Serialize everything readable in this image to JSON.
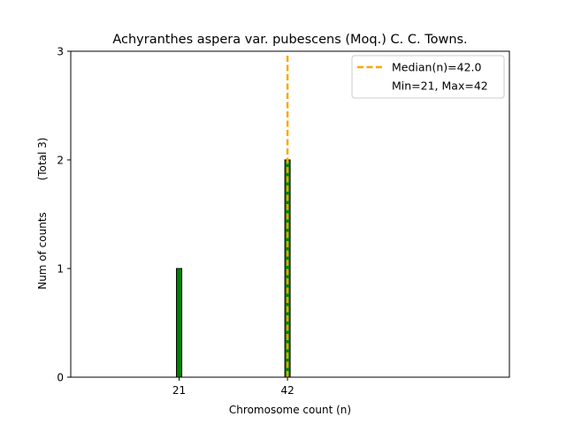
{
  "chart_data": {
    "type": "bar",
    "title": "Achyranthes aspera var. pubescens (Moq.) C. C. Towns.",
    "xlabel": "Chromosome count (n)",
    "ylabel": "Num of counts",
    "ylabel_note": "(Total 3)",
    "x_ticks": [
      21,
      42
    ],
    "y_ticks": [
      0,
      1,
      2,
      3
    ],
    "xlim": [
      0,
      85
    ],
    "ylim": [
      0,
      3
    ],
    "bars": [
      {
        "x": 21,
        "value": 1
      },
      {
        "x": 42,
        "value": 2
      }
    ],
    "bar_color": "#008000",
    "median": {
      "value": 42.0,
      "color": "#FFA500"
    },
    "legend": {
      "placement": "top-right",
      "entries": [
        "Median(n)=42.0",
        "Min=21, Max=42"
      ]
    },
    "grid": false
  }
}
